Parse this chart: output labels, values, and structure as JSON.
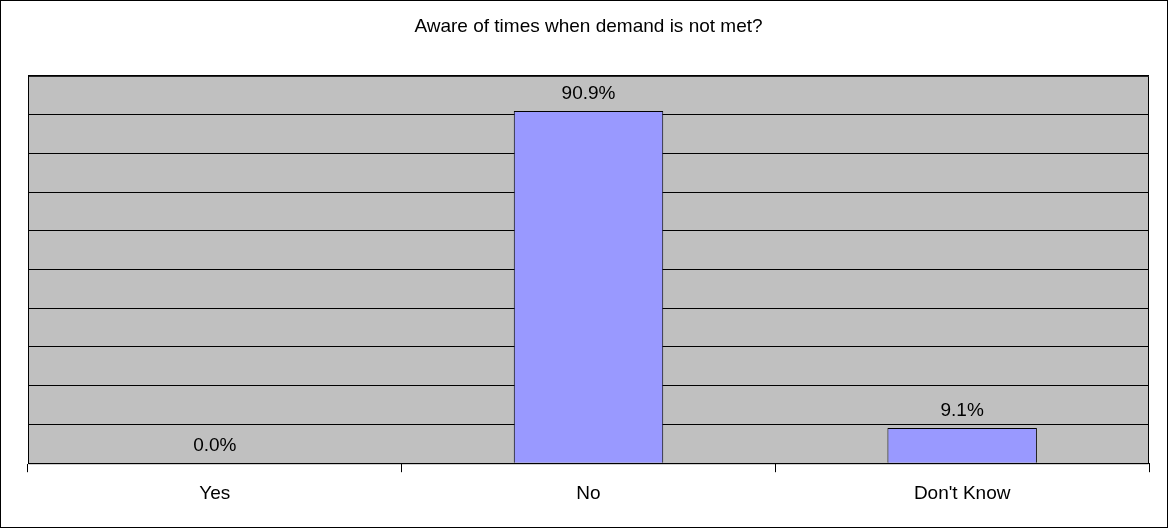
{
  "chart_data": {
    "type": "bar",
    "title": "Aware of times when demand is not met?",
    "categories": [
      "Yes",
      "No",
      "Don't Know"
    ],
    "values": [
      0,
      90.9,
      9.1
    ],
    "value_labels": [
      "0.0%",
      "90.9%",
      "9.1%"
    ],
    "color": "#9999ff",
    "ylim": [
      0,
      100
    ],
    "yticks": [
      {
        "value": 0,
        "label": null
      },
      {
        "value": 10,
        "label": null
      },
      {
        "value": 20,
        "label": null
      },
      {
        "value": 30,
        "label": null
      },
      {
        "value": 40,
        "label": null
      },
      {
        "value": 50,
        "label": null
      },
      {
        "value": 60,
        "label": null
      },
      {
        "value": 70,
        "label": null
      },
      {
        "value": 80,
        "label": null
      },
      {
        "value": 90,
        "label": null
      },
      {
        "value": 100,
        "label": null
      }
    ],
    "grid": "y",
    "legend": false
  }
}
